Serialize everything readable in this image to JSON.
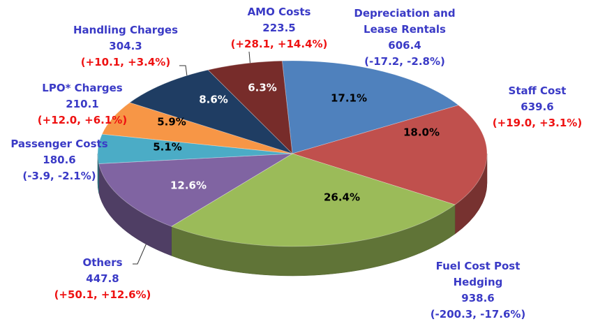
{
  "chart_data": {
    "type": "pie",
    "categories": [
      "Depreciation and Lease Rentals",
      "Staff Cost",
      "Fuel Cost Post Hedging",
      "Others",
      "Passenger Costs",
      "LPO* Charges",
      "Handling Charges",
      "AMO Costs"
    ],
    "values": [
      17.1,
      18.0,
      26.4,
      12.6,
      5.1,
      5.9,
      8.6,
      6.3
    ],
    "value_labels": [
      "17.1%",
      "18.0%",
      "26.4%",
      "12.6%",
      "5.1%",
      "5.9%",
      "8.6%",
      "6.3%"
    ],
    "amounts": [
      606.4,
      639.6,
      938.6,
      447.8,
      180.6,
      210.1,
      304.3,
      223.5
    ],
    "changes": [
      "(-17.2, -2.8%)",
      "(+19.0, +3.1%)",
      "(-200.3, -17.6%)",
      "(+50.1, +12.6%)",
      "(-3.9, -2.1%)",
      "(+12.0, +6.1%)",
      "(+10.1, +3.4%)",
      "(+28.1, +14.4%)"
    ],
    "change_colors": [
      "#3a3ac6",
      "#ee1111",
      "#3a3ac6",
      "#ee1111",
      "#3a3ac6",
      "#ee1111",
      "#ee1111",
      "#ee1111"
    ],
    "colors": [
      "#4f81bd",
      "#c0504d",
      "#9bbb59",
      "#8064a2",
      "#4bacc6",
      "#f79646",
      "#1f3d63",
      "#772c2a"
    ],
    "label_color": "#3a3ac6"
  }
}
